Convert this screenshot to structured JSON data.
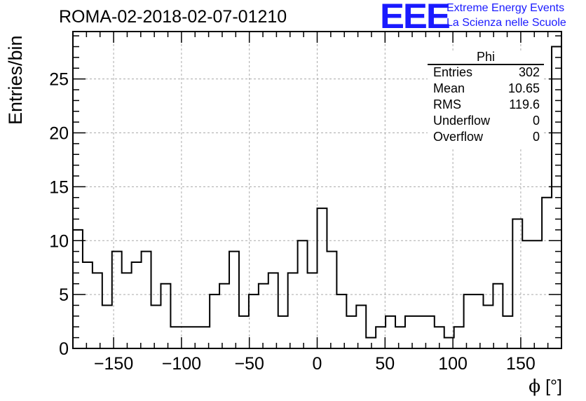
{
  "header": {
    "title": "ROMA-02-2018-02-07-01210",
    "logo_text": "EEE",
    "logo_line1": "Extreme Energy Events",
    "logo_line2": "La Scienza nelle Scuole",
    "brand_color": "#1a1aff"
  },
  "stats_box": {
    "name": "Phi",
    "rows": [
      {
        "label": "Entries",
        "value": "302"
      },
      {
        "label": "Mean",
        "value": "10.65"
      },
      {
        "label": "RMS",
        "value": "119.6"
      },
      {
        "label": "Underflow",
        "value": "0"
      },
      {
        "label": "Overflow",
        "value": "0"
      }
    ]
  },
  "chart_data": {
    "type": "bar",
    "style": "step-histogram",
    "title": "ROMA-02-2018-02-07-01210",
    "xlabel_symbol": "ϕ",
    "xlabel_unit": "[°]",
    "ylabel": "Entries/bin",
    "xlim": [
      -180,
      180
    ],
    "ylim": [
      0,
      29.4
    ],
    "bin_width": 7.2,
    "xticks": [
      -150,
      -100,
      -50,
      0,
      50,
      100,
      150
    ],
    "xtick_labels": [
      "−150",
      "−100",
      "−50",
      "0",
      "50",
      "100",
      "150"
    ],
    "yticks": [
      0,
      5,
      10,
      15,
      20,
      25
    ],
    "grid": true,
    "line_color": "#000000",
    "values": [
      11,
      8,
      7,
      4,
      9,
      7,
      8,
      9,
      4,
      6,
      2,
      2,
      2,
      2,
      5,
      6,
      9,
      3,
      5,
      6,
      7,
      3,
      7,
      10,
      7,
      13,
      9,
      5,
      3,
      4,
      1,
      2,
      3,
      2,
      3,
      3,
      3,
      2,
      1,
      2,
      5,
      5,
      4,
      6,
      3,
      12,
      10,
      10,
      14,
      28
    ]
  }
}
